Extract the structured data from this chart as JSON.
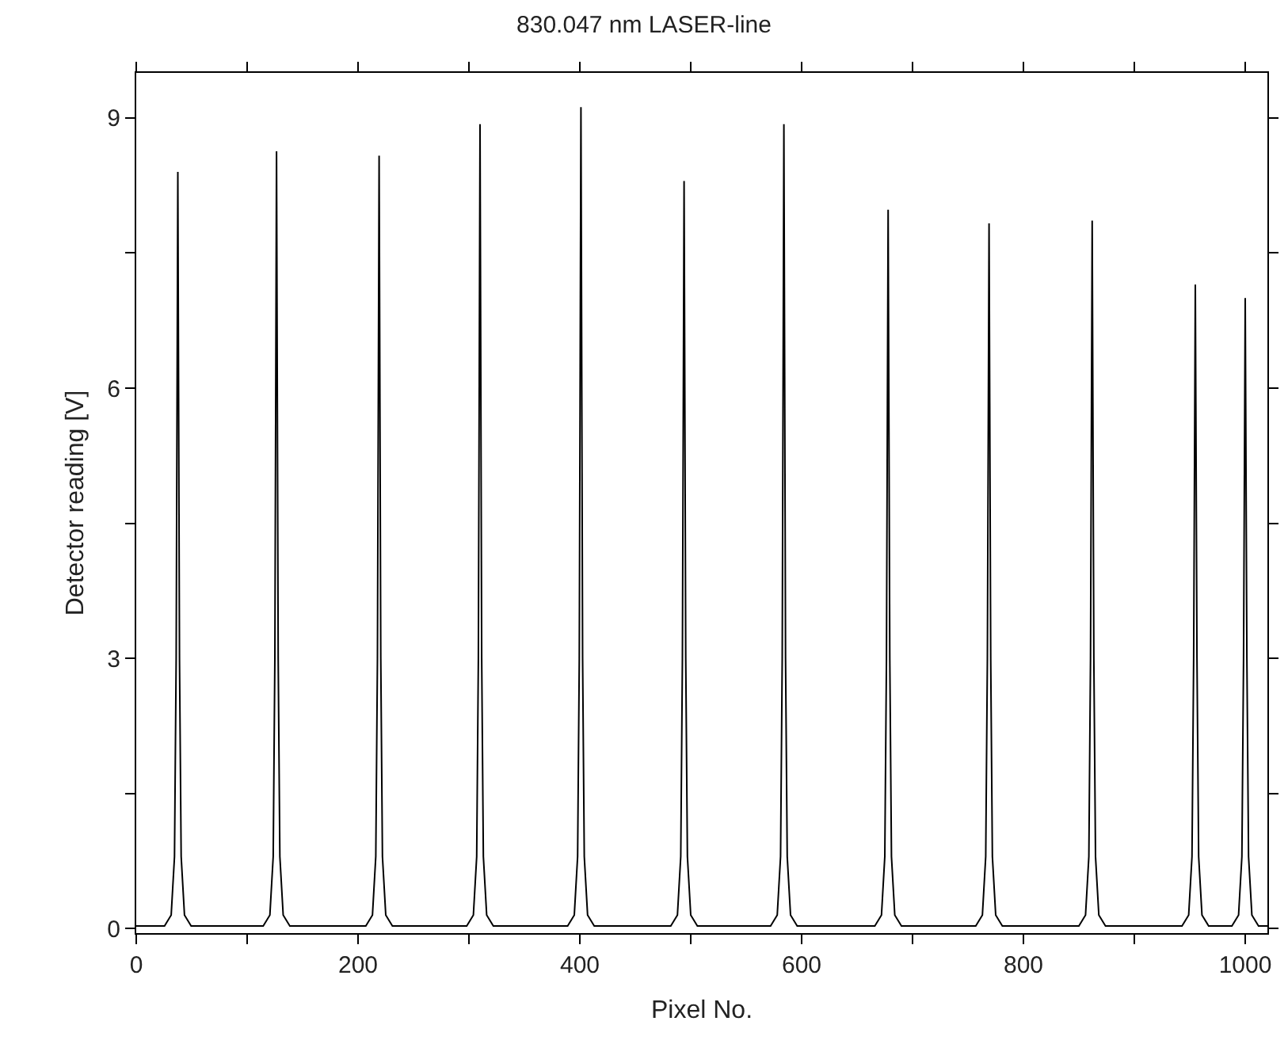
{
  "chart_data": {
    "type": "line",
    "title": "830.047 nm LASER-line",
    "xlabel": "Pixel No.",
    "ylabel": "Detector reading [V]",
    "xlim": [
      0,
      1020
    ],
    "ylim": [
      -0.05,
      9.5
    ],
    "xticks": [
      0,
      {
        "value": 100,
        "label": null
      },
      200,
      {
        "value": 300,
        "label": null
      },
      400,
      {
        "value": 500,
        "label": null
      },
      600,
      {
        "value": 700,
        "label": null
      },
      800,
      {
        "value": 900,
        "label": null
      },
      1000
    ],
    "yticks": [
      0,
      {
        "value": 1.5,
        "label": null
      },
      3,
      {
        "value": 4.5,
        "label": null
      },
      6,
      {
        "value": 7.5,
        "label": null
      },
      9
    ],
    "marker": "none",
    "line_style": "solid",
    "series": [
      {
        "color": "#000000",
        "x": [
          0,
          25.5,
          31.5,
          34.5,
          36,
          37.5,
          39,
          40.5,
          43.5,
          49.5,
          114.5,
          120.5,
          123.5,
          125,
          126.5,
          128,
          129.5,
          132.5,
          138.5,
          207,
          213,
          216,
          217.5,
          219,
          220.5,
          222,
          225,
          231,
          298,
          304,
          307,
          308.5,
          310,
          311.5,
          313,
          316,
          322,
          389,
          395,
          398,
          399.5,
          401,
          402.5,
          404,
          407,
          413,
          482,
          488,
          491,
          492.5,
          494,
          495.5,
          497,
          500,
          506,
          572,
          578,
          581,
          582.5,
          584,
          585.5,
          587,
          590,
          596,
          666,
          672,
          675,
          676.5,
          678,
          679.5,
          681,
          684,
          690,
          757,
          763,
          766,
          767.5,
          769,
          770.5,
          772,
          775,
          781,
          850,
          856,
          859,
          860.5,
          862,
          863.5,
          865,
          868,
          874,
          943,
          949,
          952,
          953.5,
          955,
          956.5,
          958,
          961,
          967,
          988,
          994,
          997,
          998.5,
          1000,
          1001.5,
          1003,
          1006,
          1012,
          1020
        ],
        "values": [
          0.03,
          0.03,
          0.15,
          0.8,
          3,
          8.4,
          3,
          0.8,
          0.15,
          0.03,
          0.03,
          0.15,
          0.8,
          3,
          8.63,
          3,
          0.8,
          0.15,
          0.03,
          0.03,
          0.15,
          0.8,
          3,
          8.58,
          3,
          0.8,
          0.15,
          0.03,
          0.03,
          0.15,
          0.8,
          3,
          8.93,
          3,
          0.8,
          0.15,
          0.03,
          0.03,
          0.15,
          0.8,
          3,
          9.12,
          3,
          0.8,
          0.15,
          0.03,
          0.03,
          0.15,
          0.8,
          3,
          8.3,
          3,
          0.8,
          0.15,
          0.03,
          0.03,
          0.15,
          0.8,
          3,
          8.93,
          3,
          0.8,
          0.15,
          0.03,
          0.03,
          0.15,
          0.8,
          3,
          7.98,
          3,
          0.8,
          0.15,
          0.03,
          0.03,
          0.15,
          0.8,
          3,
          7.83,
          3,
          0.8,
          0.15,
          0.03,
          0.03,
          0.15,
          0.8,
          3,
          7.86,
          3,
          0.8,
          0.15,
          0.03,
          0.03,
          0.15,
          0.8,
          3,
          7.15,
          3,
          0.8,
          0.15,
          0.03,
          0.03,
          0.15,
          0.8,
          3,
          7.0,
          3,
          0.8,
          0.15,
          0.03,
          0.03
        ]
      }
    ]
  }
}
